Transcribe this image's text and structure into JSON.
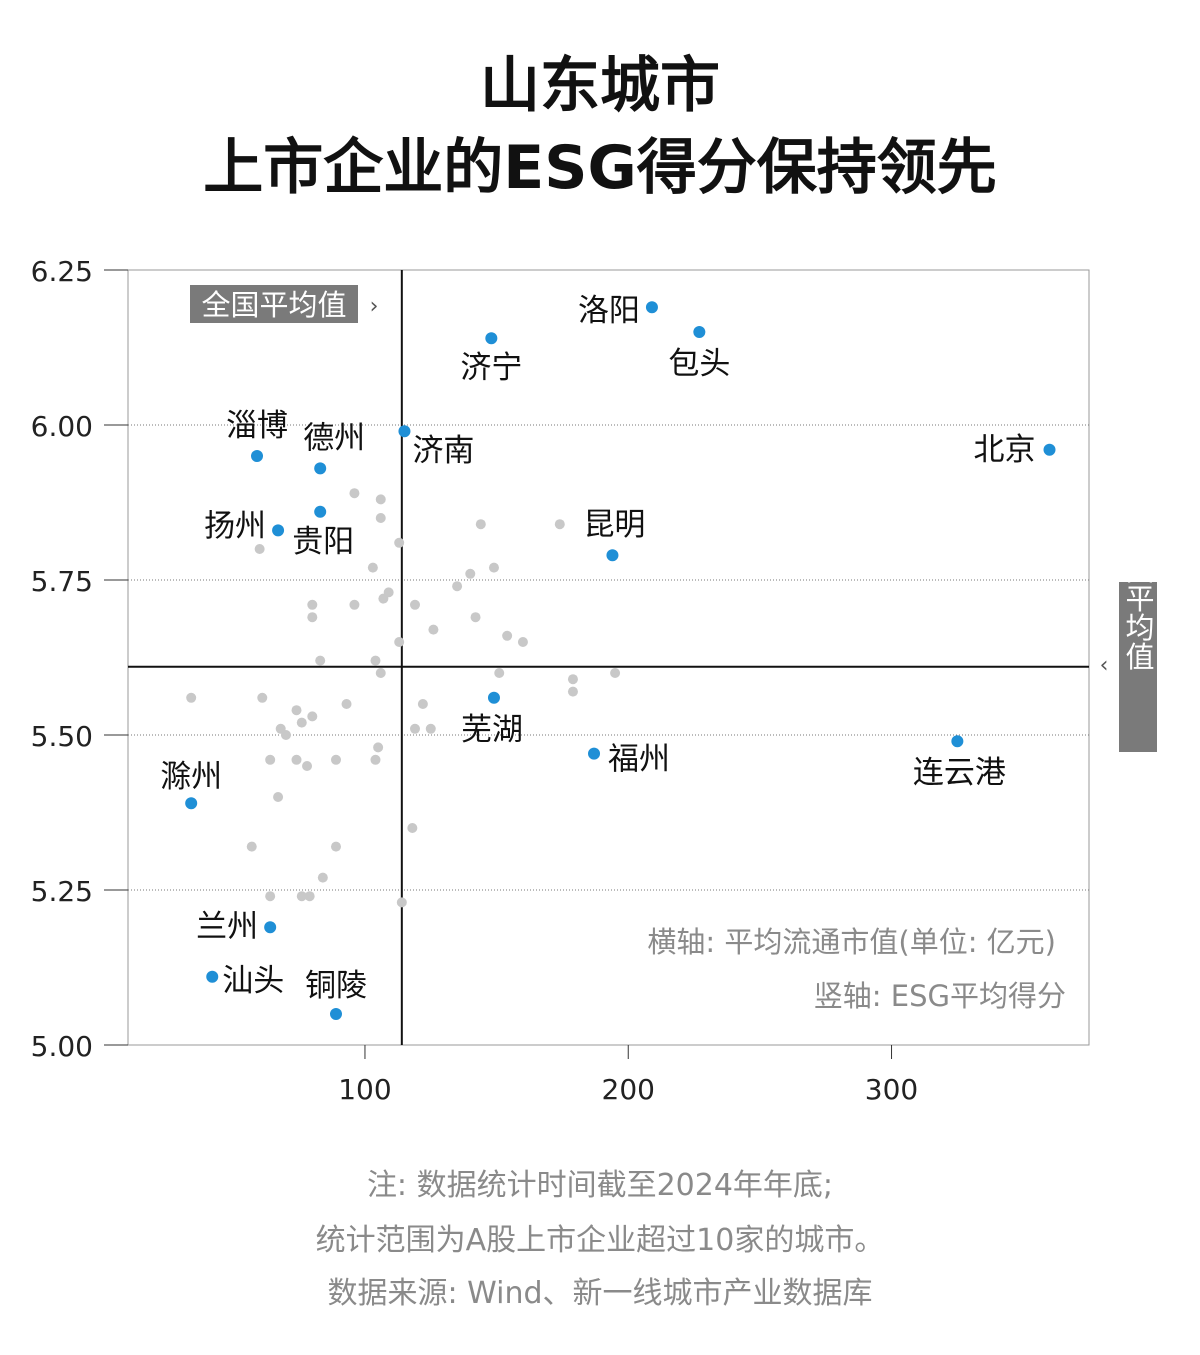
{
  "title_line1": "山东城市",
  "title_line2": "上市企业的ESG得分保持领先",
  "avg_label_h": "全国平均值",
  "avg_label_v": "全国平均值",
  "legend_x": "横轴: 平均流通市值(单位: 亿元)",
  "legend_y": "竖轴: ESG平均得分",
  "notes": [
    "注: 数据统计时间截至2024年年底;",
    "统计范围为A股上市企业超过10家的城市。",
    "数据来源: Wind、新一线城市产业数据库"
  ],
  "colors": {
    "highlight": "#1f8fd6",
    "other": "#c8c8c8",
    "label_box": "#7a7a7a",
    "axis": "#111111"
  },
  "chart_data": {
    "type": "scatter",
    "xlim": [
      10,
      375
    ],
    "ylim": [
      5.0,
      6.25
    ],
    "xticks": [
      "100",
      "200",
      "300"
    ],
    "xtick_values": [
      100,
      200,
      300
    ],
    "yticks": [
      "5.00",
      "5.25",
      "5.50",
      "5.75",
      "6.00",
      "6.25"
    ],
    "ytick_values": [
      5.0,
      5.25,
      5.5,
      5.75,
      6.0,
      6.25
    ],
    "national_avg_x": 114,
    "national_avg_y": 5.61,
    "highlighted": [
      {
        "name": "洛阳",
        "x": 209,
        "y": 6.19
      },
      {
        "name": "包头",
        "x": 227,
        "y": 6.15
      },
      {
        "name": "济宁",
        "x": 148,
        "y": 6.14
      },
      {
        "name": "淄博",
        "x": 59,
        "y": 5.95
      },
      {
        "name": "德州",
        "x": 83,
        "y": 5.93
      },
      {
        "name": "济南",
        "x": 115,
        "y": 5.99
      },
      {
        "name": "北京",
        "x": 360,
        "y": 5.96
      },
      {
        "name": "扬州",
        "x": 67,
        "y": 5.83
      },
      {
        "name": "贵阳",
        "x": 83,
        "y": 5.86
      },
      {
        "name": "昆明",
        "x": 194,
        "y": 5.79
      },
      {
        "name": "芜湖",
        "x": 149,
        "y": 5.56
      },
      {
        "name": "福州",
        "x": 187,
        "y": 5.47
      },
      {
        "name": "连云港",
        "x": 325,
        "y": 5.49
      },
      {
        "name": "滁州",
        "x": 34,
        "y": 5.39
      },
      {
        "name": "兰州",
        "x": 64,
        "y": 5.19
      },
      {
        "name": "汕头",
        "x": 42,
        "y": 5.11
      },
      {
        "name": "铜陵",
        "x": 89,
        "y": 5.05
      }
    ],
    "others": [
      [
        96,
        5.89
      ],
      [
        106,
        5.88
      ],
      [
        106,
        5.85
      ],
      [
        144,
        5.84
      ],
      [
        174,
        5.84
      ],
      [
        113,
        5.81
      ],
      [
        60,
        5.8
      ],
      [
        103,
        5.77
      ],
      [
        149,
        5.77
      ],
      [
        140,
        5.76
      ],
      [
        135,
        5.74
      ],
      [
        109,
        5.73
      ],
      [
        107,
        5.72
      ],
      [
        119,
        5.71
      ],
      [
        80,
        5.71
      ],
      [
        96,
        5.71
      ],
      [
        80,
        5.69
      ],
      [
        142,
        5.69
      ],
      [
        126,
        5.67
      ],
      [
        154,
        5.66
      ],
      [
        160,
        5.65
      ],
      [
        113,
        5.65
      ],
      [
        104,
        5.62
      ],
      [
        83,
        5.62
      ],
      [
        151,
        5.6
      ],
      [
        106,
        5.6
      ],
      [
        179,
        5.59
      ],
      [
        195,
        5.6
      ],
      [
        179,
        5.57
      ],
      [
        61,
        5.56
      ],
      [
        34,
        5.56
      ],
      [
        93,
        5.55
      ],
      [
        122,
        5.55
      ],
      [
        74,
        5.54
      ],
      [
        80,
        5.53
      ],
      [
        76,
        5.52
      ],
      [
        68,
        5.51
      ],
      [
        119,
        5.51
      ],
      [
        125,
        5.51
      ],
      [
        70,
        5.5
      ],
      [
        105,
        5.48
      ],
      [
        64,
        5.46
      ],
      [
        74,
        5.46
      ],
      [
        89,
        5.46
      ],
      [
        104,
        5.46
      ],
      [
        78,
        5.45
      ],
      [
        67,
        5.4
      ],
      [
        118,
        5.35
      ],
      [
        89,
        5.32
      ],
      [
        57,
        5.32
      ],
      [
        84,
        5.27
      ],
      [
        64,
        5.24
      ],
      [
        79,
        5.24
      ],
      [
        76,
        5.24
      ],
      [
        114,
        5.23
      ]
    ]
  }
}
